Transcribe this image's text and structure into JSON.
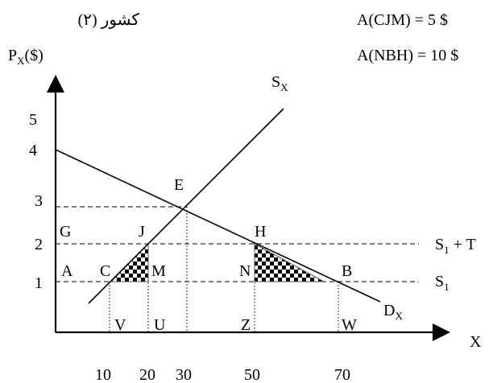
{
  "header": {
    "country": "کشور (۲)",
    "area_cjm": "A(CJM) = 5 $",
    "area_nbh": "A(NBH) = 10 $"
  },
  "axes": {
    "y_label_main": "P",
    "y_label_sub": "X",
    "y_label_unit": "($)",
    "x_label": "X",
    "y_ticks": [
      "5",
      "4",
      "3",
      "2",
      "1"
    ],
    "x_ticks": [
      "10",
      "20",
      "30",
      "50",
      "70"
    ]
  },
  "curves": {
    "supply_main": "S",
    "supply_sub": "X",
    "demand_main": "D",
    "demand_sub": "X",
    "s1t_main": "S",
    "s1t_sub": "1",
    "s1t_suffix": " + T",
    "s1_main": "S",
    "s1_sub": "1"
  },
  "points": {
    "E": "E",
    "G": "G",
    "J": "J",
    "H": "H",
    "A": "A",
    "C": "C",
    "M": "M",
    "N": "N",
    "B": "B",
    "V": "V",
    "U": "U",
    "Z": "Z",
    "W": "W"
  },
  "diagram_data": {
    "supply_line": [
      [
        10,
        1
      ],
      [
        30,
        3
      ]
    ],
    "demand_line": [
      [
        0,
        4
      ],
      [
        70,
        1
      ]
    ],
    "equilibrium_E": [
      30,
      3
    ],
    "world_price": 1,
    "price_with_tariff": 2,
    "shaded_triangles": [
      "CJM",
      "NBH"
    ]
  }
}
